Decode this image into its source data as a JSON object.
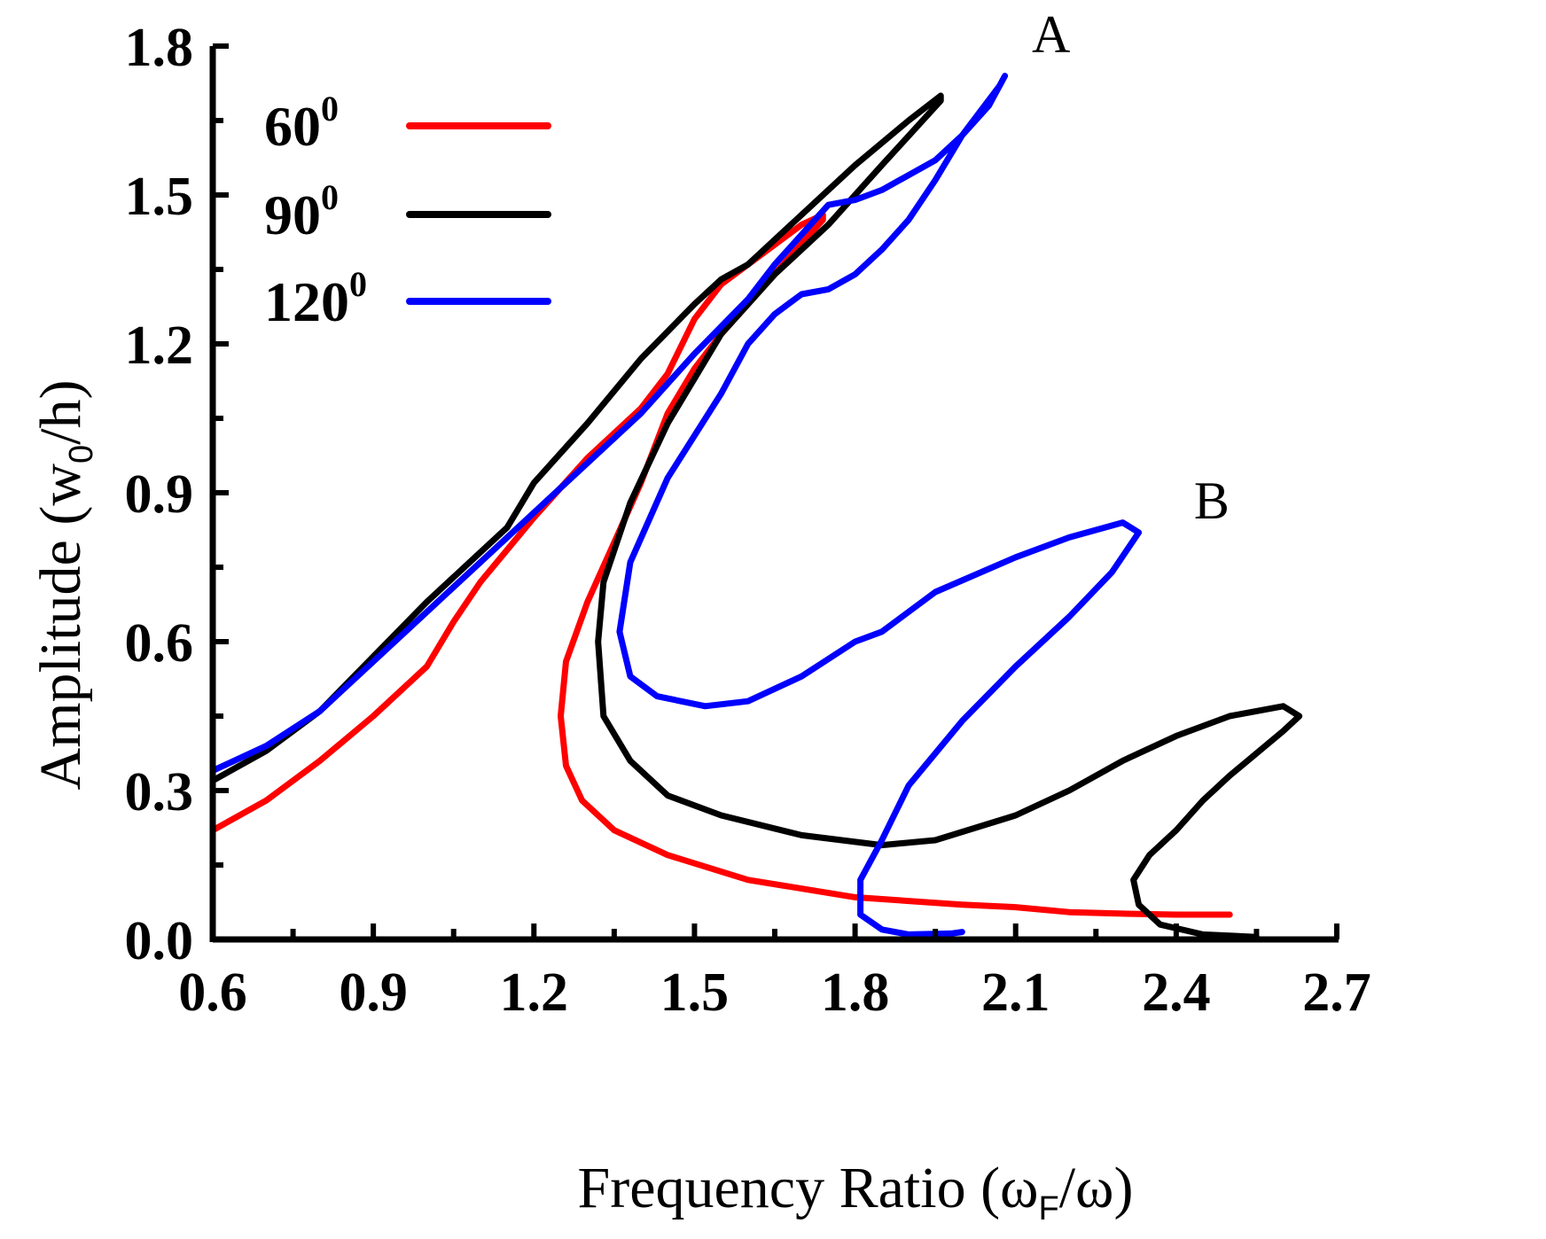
{
  "chart_data": {
    "type": "line",
    "title": "",
    "xlabel": "Frequency Ratio (ωF/ω)",
    "xlabel_parts": {
      "pre": "Frequency Ratio (ω",
      "sub": "F",
      "post": "/ω)"
    },
    "ylabel": "Amplitude (w0/h)",
    "ylabel_parts": {
      "pre": "Amplitude (w",
      "sub": "0",
      "post": "/h)"
    },
    "xlim": [
      0.6,
      2.7
    ],
    "ylim": [
      0.0,
      1.8
    ],
    "xticks": [
      "0.6",
      "0.9",
      "1.2",
      "1.5",
      "1.8",
      "2.1",
      "2.4",
      "2.7"
    ],
    "yticks": [
      "0.0",
      "0.3",
      "0.6",
      "0.9",
      "1.2",
      "1.5",
      "1.8"
    ],
    "grid": false,
    "legend_position": "top-left",
    "annotations": [
      {
        "text": "A",
        "x": 2.1,
        "y": 1.82
      },
      {
        "text": "B",
        "x": 2.4,
        "y": 0.88
      }
    ],
    "series": [
      {
        "name": "60",
        "superscript": "0",
        "color": "#ff0000",
        "points": [
          [
            0.6,
            0.22
          ],
          [
            0.7,
            0.28
          ],
          [
            0.8,
            0.36
          ],
          [
            0.9,
            0.45
          ],
          [
            1.0,
            0.55
          ],
          [
            1.05,
            0.64
          ],
          [
            1.1,
            0.72
          ],
          [
            1.2,
            0.85
          ],
          [
            1.3,
            0.97
          ],
          [
            1.4,
            1.07
          ],
          [
            1.45,
            1.14
          ],
          [
            1.5,
            1.25
          ],
          [
            1.55,
            1.32
          ],
          [
            1.6,
            1.36
          ],
          [
            1.7,
            1.44
          ],
          [
            1.74,
            1.46
          ],
          [
            1.74,
            1.45
          ],
          [
            1.6,
            1.28
          ],
          [
            1.55,
            1.22
          ],
          [
            1.5,
            1.15
          ],
          [
            1.45,
            1.06
          ],
          [
            1.4,
            0.92
          ],
          [
            1.35,
            0.8
          ],
          [
            1.3,
            0.68
          ],
          [
            1.26,
            0.56
          ],
          [
            1.25,
            0.45
          ],
          [
            1.26,
            0.35
          ],
          [
            1.29,
            0.28
          ],
          [
            1.35,
            0.22
          ],
          [
            1.45,
            0.17
          ],
          [
            1.6,
            0.12
          ],
          [
            1.8,
            0.085
          ],
          [
            2.0,
            0.07
          ],
          [
            2.1,
            0.065
          ],
          [
            2.2,
            0.055
          ],
          [
            2.3,
            0.052
          ],
          [
            2.4,
            0.05
          ],
          [
            2.5,
            0.05
          ]
        ]
      },
      {
        "name": "90",
        "superscript": "0",
        "color": "#000000",
        "points": [
          [
            0.6,
            0.32
          ],
          [
            0.7,
            0.38
          ],
          [
            0.8,
            0.46
          ],
          [
            0.9,
            0.57
          ],
          [
            1.0,
            0.68
          ],
          [
            1.1,
            0.78
          ],
          [
            1.15,
            0.83
          ],
          [
            1.2,
            0.92
          ],
          [
            1.3,
            1.04
          ],
          [
            1.4,
            1.17
          ],
          [
            1.5,
            1.28
          ],
          [
            1.55,
            1.33
          ],
          [
            1.6,
            1.36
          ],
          [
            1.7,
            1.46
          ],
          [
            1.8,
            1.56
          ],
          [
            1.9,
            1.65
          ],
          [
            1.96,
            1.7
          ],
          [
            1.96,
            1.69
          ],
          [
            1.85,
            1.56
          ],
          [
            1.75,
            1.44
          ],
          [
            1.65,
            1.34
          ],
          [
            1.55,
            1.22
          ],
          [
            1.45,
            1.04
          ],
          [
            1.38,
            0.88
          ],
          [
            1.33,
            0.72
          ],
          [
            1.32,
            0.6
          ],
          [
            1.33,
            0.45
          ],
          [
            1.38,
            0.36
          ],
          [
            1.45,
            0.29
          ],
          [
            1.55,
            0.25
          ],
          [
            1.7,
            0.21
          ],
          [
            1.85,
            0.19
          ],
          [
            1.95,
            0.2
          ],
          [
            2.1,
            0.25
          ],
          [
            2.2,
            0.3
          ],
          [
            2.3,
            0.36
          ],
          [
            2.4,
            0.41
          ],
          [
            2.5,
            0.45
          ],
          [
            2.6,
            0.47
          ],
          [
            2.63,
            0.45
          ],
          [
            2.6,
            0.42
          ],
          [
            2.5,
            0.33
          ],
          [
            2.45,
            0.28
          ],
          [
            2.4,
            0.22
          ],
          [
            2.35,
            0.17
          ],
          [
            2.32,
            0.12
          ],
          [
            2.33,
            0.07
          ],
          [
            2.37,
            0.03
          ],
          [
            2.45,
            0.01
          ],
          [
            2.55,
            0.005
          ]
        ]
      },
      {
        "name": "120",
        "superscript": "0",
        "color": "#0000ff",
        "points": [
          [
            0.6,
            0.34
          ],
          [
            0.7,
            0.39
          ],
          [
            0.8,
            0.46
          ],
          [
            0.9,
            0.56
          ],
          [
            1.0,
            0.66
          ],
          [
            1.1,
            0.76
          ],
          [
            1.2,
            0.86
          ],
          [
            1.3,
            0.96
          ],
          [
            1.4,
            1.06
          ],
          [
            1.5,
            1.18
          ],
          [
            1.6,
            1.29
          ],
          [
            1.65,
            1.36
          ],
          [
            1.7,
            1.42
          ],
          [
            1.75,
            1.48
          ],
          [
            1.8,
            1.49
          ],
          [
            1.85,
            1.51
          ],
          [
            1.95,
            1.57
          ],
          [
            2.0,
            1.62
          ],
          [
            2.05,
            1.68
          ],
          [
            2.08,
            1.74
          ],
          [
            2.07,
            1.72
          ],
          [
            2.0,
            1.62
          ],
          [
            1.95,
            1.53
          ],
          [
            1.9,
            1.45
          ],
          [
            1.85,
            1.39
          ],
          [
            1.8,
            1.34
          ],
          [
            1.75,
            1.31
          ],
          [
            1.7,
            1.3
          ],
          [
            1.65,
            1.26
          ],
          [
            1.6,
            1.2
          ],
          [
            1.55,
            1.1
          ],
          [
            1.45,
            0.93
          ],
          [
            1.38,
            0.76
          ],
          [
            1.36,
            0.62
          ],
          [
            1.38,
            0.53
          ],
          [
            1.43,
            0.49
          ],
          [
            1.52,
            0.47
          ],
          [
            1.6,
            0.48
          ],
          [
            1.7,
            0.53
          ],
          [
            1.8,
            0.6
          ],
          [
            1.85,
            0.62
          ],
          [
            1.95,
            0.7
          ],
          [
            2.1,
            0.77
          ],
          [
            2.2,
            0.81
          ],
          [
            2.3,
            0.84
          ],
          [
            2.33,
            0.82
          ],
          [
            2.28,
            0.74
          ],
          [
            2.2,
            0.65
          ],
          [
            2.1,
            0.55
          ],
          [
            2.0,
            0.44
          ],
          [
            1.9,
            0.31
          ],
          [
            1.85,
            0.2
          ],
          [
            1.81,
            0.12
          ],
          [
            1.81,
            0.05
          ],
          [
            1.85,
            0.02
          ],
          [
            1.9,
            0.01
          ],
          [
            1.98,
            0.012
          ],
          [
            2.0,
            0.015
          ]
        ]
      }
    ]
  }
}
